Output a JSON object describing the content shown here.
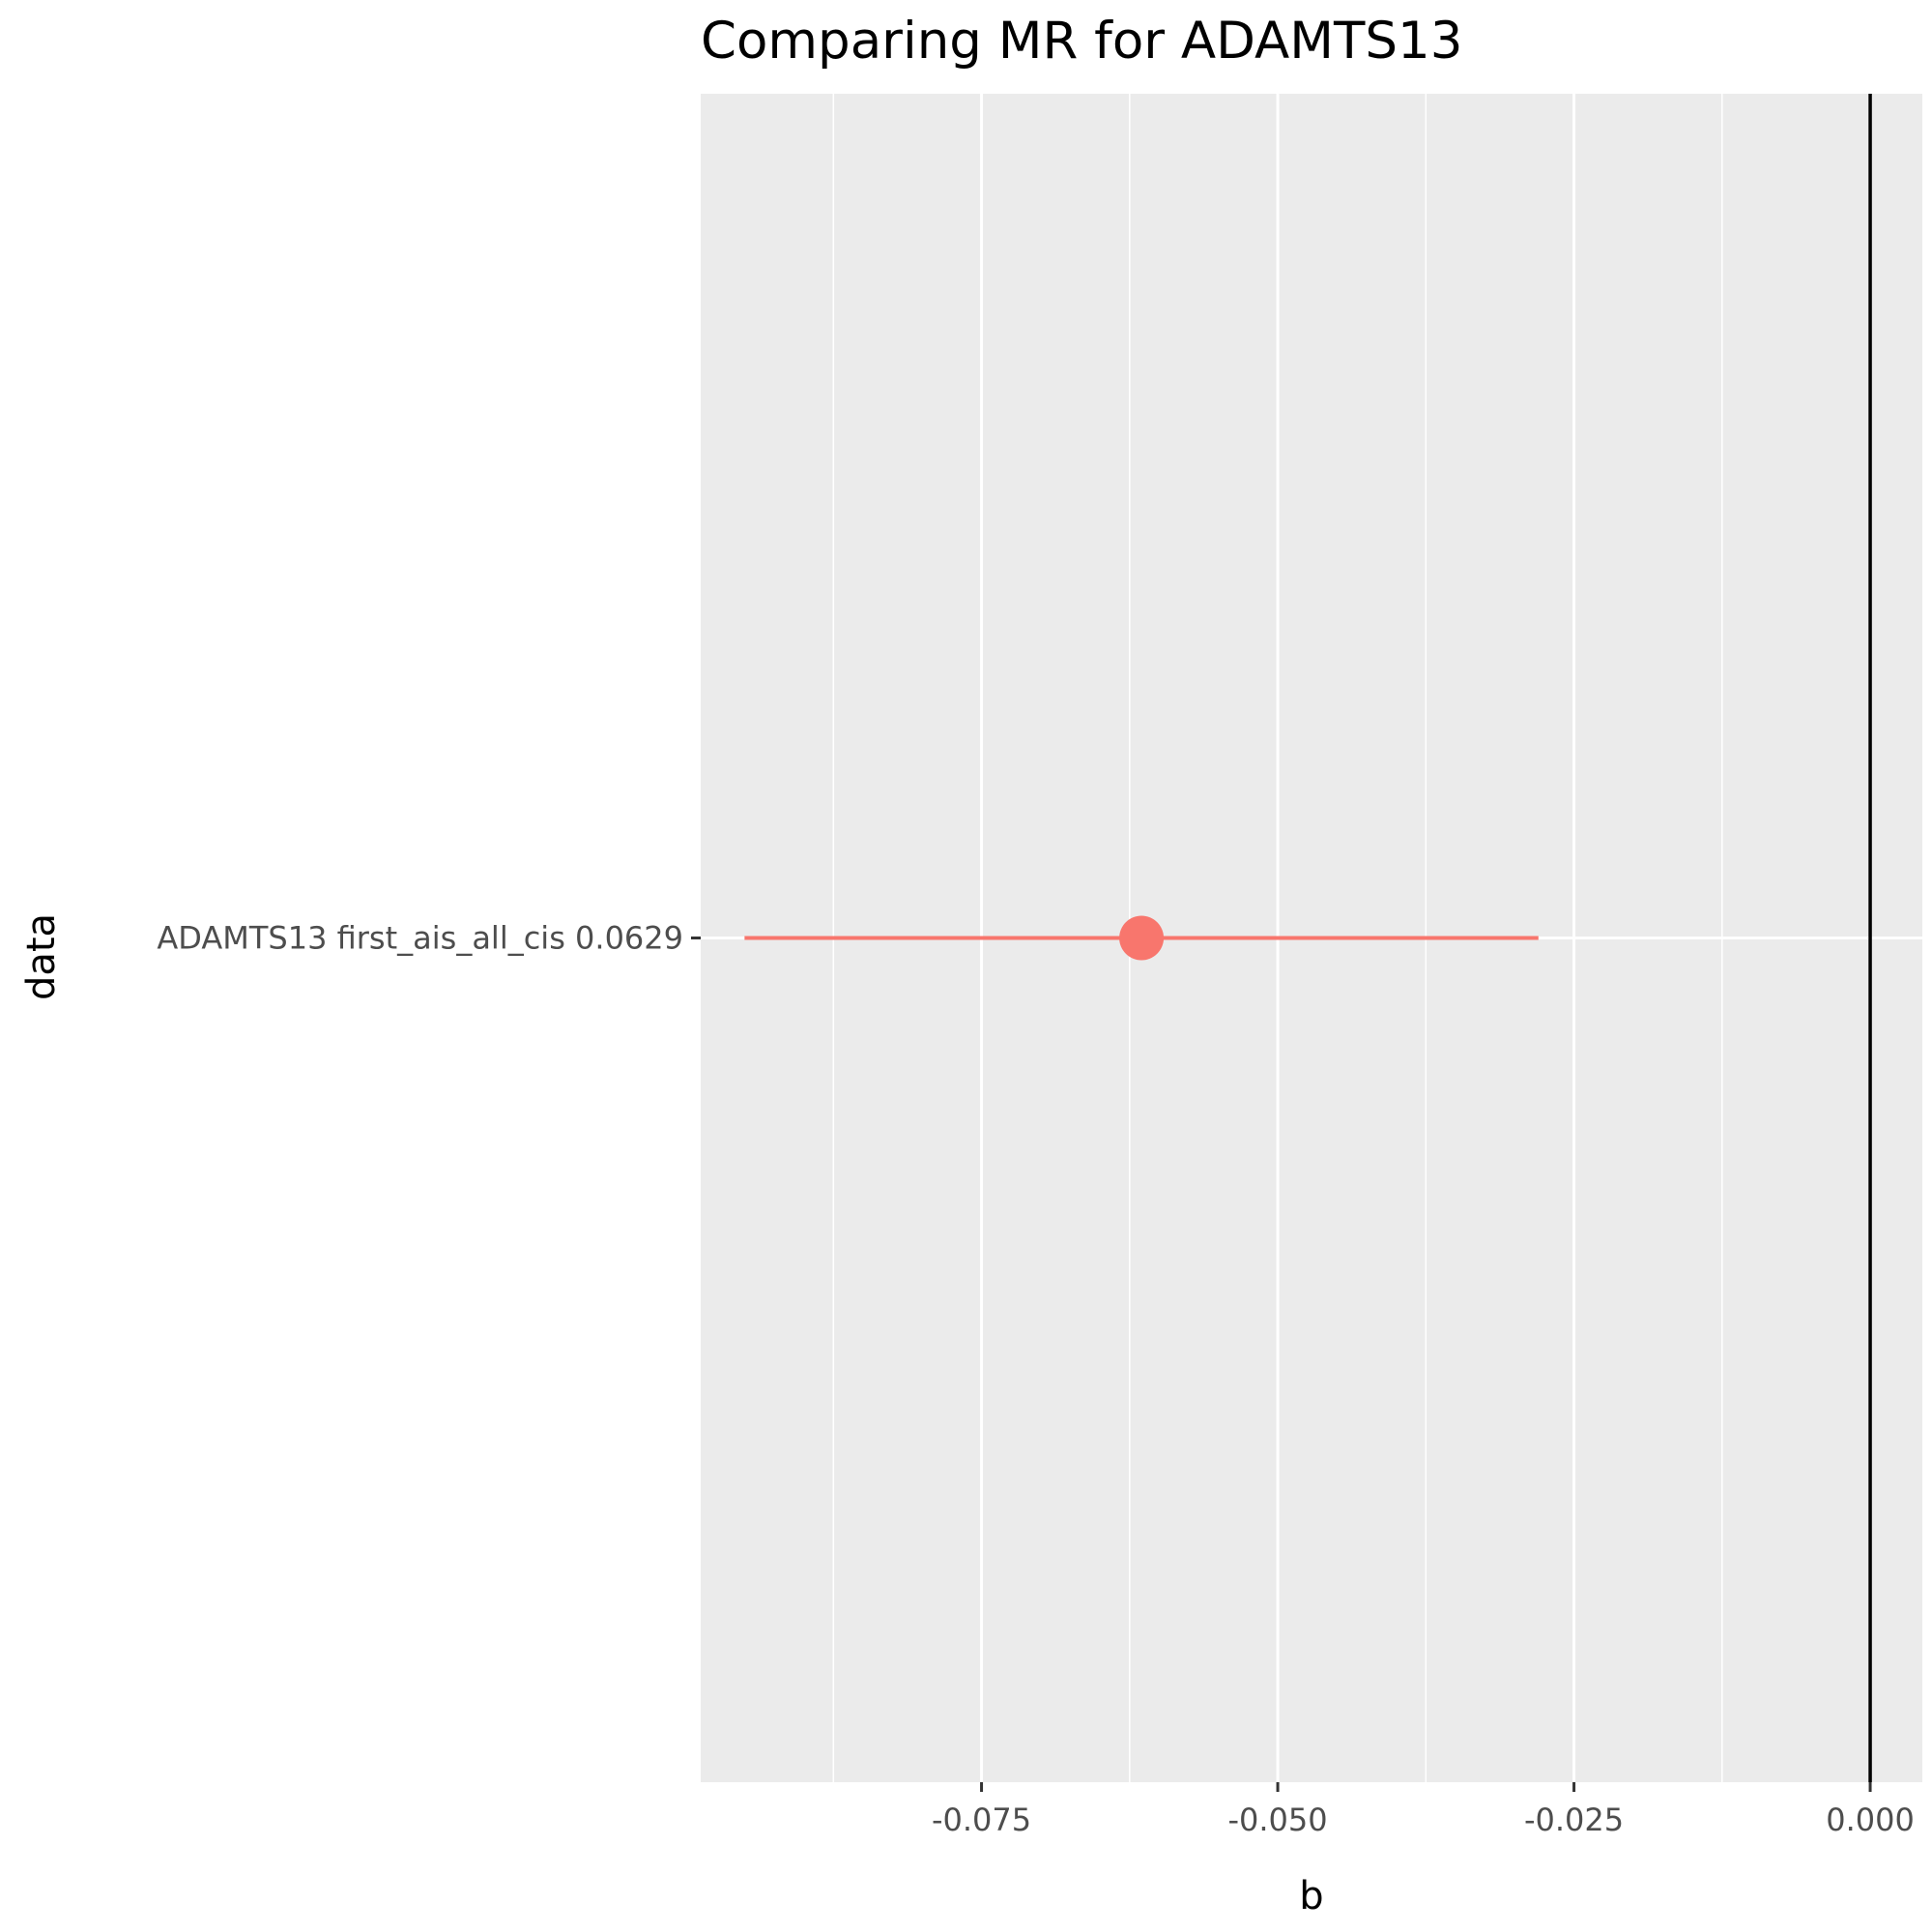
{
  "chart_data": {
    "type": "forest",
    "title": "Comparing MR for ADAMTS13",
    "xlabel": "b",
    "ylabel": "data",
    "categories": [
      "ADAMTS13 first_ais_all_cis 0.0629"
    ],
    "points": [
      {
        "label": "ADAMTS13 first_ais_all_cis 0.0629",
        "b": -0.0615,
        "ci_low": -0.095,
        "ci_high": -0.028
      }
    ],
    "xlim": [
      -0.0987,
      0.0044
    ],
    "x_ticks": [
      -0.075,
      -0.05,
      -0.025,
      0.0
    ],
    "x_tick_labels": [
      "-0.075",
      "-0.050",
      "-0.025",
      "0.000"
    ],
    "reference_line": 0,
    "grid": true,
    "colors": {
      "panel": "#ebebeb",
      "gridline": "#ffffff",
      "point": "#f8766d",
      "reference_line": "#000000",
      "tick_text": "#4d4d4d"
    }
  }
}
